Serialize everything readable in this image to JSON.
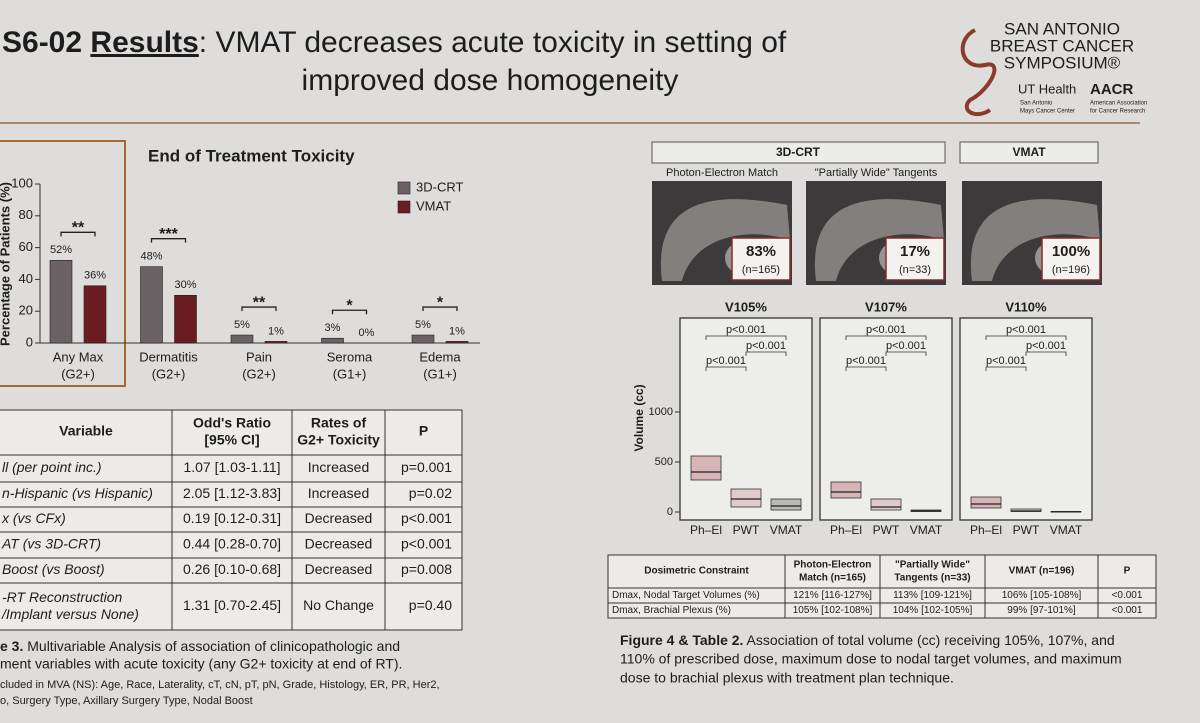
{
  "header": {
    "code": "S6-02",
    "results": "Results",
    "title_line1": ": VMAT decreases acute toxicity in setting of",
    "title_line2": "improved dose homogeneity"
  },
  "logo": {
    "line1": "SAN ANTONIO",
    "line2": "BREAST CANCER",
    "line3": "SYMPOSIUM®",
    "ut": "UT Health",
    "ut_sub1": "San Antonio",
    "ut_sub2": "Mays Cancer Center",
    "aacr": "AACR",
    "aacr_sub1": "American Association",
    "aacr_sub2": "for Cancer Research"
  },
  "chart_data": [
    {
      "type": "bar",
      "title": "End of Treatment Toxicity",
      "y_label": "Percentage of Patients (%)",
      "categories": [
        "Any Max",
        "Dermatitis",
        "Pain",
        "Seroma",
        "Edema"
      ],
      "category_grades": [
        "(G2+)",
        "(G2+)",
        "(G2+)",
        "(G1+)",
        "(G1+)"
      ],
      "significance": [
        "**",
        "***",
        "**",
        "*",
        "*"
      ],
      "series": [
        {
          "name": "3D-CRT",
          "color": "#6a6265",
          "values": [
            52,
            48,
            5,
            3,
            5
          ],
          "value_labels": [
            "52%",
            "48%",
            "5%",
            "3%",
            "5%"
          ]
        },
        {
          "name": "VMAT",
          "color": "#6b1c20",
          "values": [
            36,
            30,
            1,
            0,
            1
          ],
          "value_labels": [
            "36%",
            "30%",
            "1%",
            "0%",
            "1%"
          ]
        }
      ],
      "ylim": [
        0,
        100
      ],
      "yticks": [
        0,
        20,
        40,
        60,
        80,
        100
      ],
      "legend": "top-right"
    },
    {
      "type": "box",
      "y_label": "Volume (cc)",
      "ylim": [
        -80,
        1940
      ],
      "yticks": [
        0,
        500,
        1000
      ],
      "categories": [
        "Ph–El",
        "PWT",
        "VMAT"
      ],
      "colors": [
        "#b04a52",
        "#c78b8f",
        "#5a5a5a"
      ],
      "panels": [
        {
          "title": "V105%",
          "q1": [
            320,
            50,
            20
          ],
          "median": [
            400,
            130,
            60
          ],
          "q3": [
            560,
            230,
            130
          ],
          "annotations": [
            "p<0.001",
            "p<0.001",
            "p<0.001"
          ]
        },
        {
          "title": "V107%",
          "q1": [
            140,
            20,
            5
          ],
          "median": [
            200,
            50,
            10
          ],
          "q3": [
            300,
            130,
            20
          ],
          "annotations": [
            "p<0.001",
            "p<0.001",
            "p<0.001"
          ]
        },
        {
          "title": "V110%",
          "q1": [
            40,
            5,
            0
          ],
          "median": [
            80,
            10,
            2
          ],
          "q3": [
            150,
            30,
            5
          ],
          "annotations": [
            "p<0.001",
            "p<0.001",
            "p<0.001"
          ]
        }
      ]
    }
  ],
  "table3": {
    "columns": [
      "Variable",
      [
        "Odd's Ratio",
        "[95% CI]"
      ],
      [
        "Rates of",
        "G2+ Toxicity"
      ],
      "P"
    ],
    "rows": [
      [
        "ll (per point inc.)",
        "1.07 [1.03-1.11]",
        "Increased",
        "p=0.001"
      ],
      [
        "n-Hispanic (vs Hispanic)",
        "2.05 [1.12-3.83]",
        "Increased",
        "p=0.02"
      ],
      [
        "x (vs CFx)",
        "0.19 [0.12-0.31]",
        "Decreased",
        "p<0.001"
      ],
      [
        "AT (vs 3D-CRT)",
        "0.44 [0.28-0.70]",
        "Decreased",
        "p<0.001"
      ],
      [
        "Boost (vs Boost)",
        "0.26 [0.10-0.68]",
        "Decreased",
        "p=0.008"
      ],
      [
        [
          "-RT Reconstruction",
          "/Implant versus None)"
        ],
        "1.31 [0.70-2.45]",
        "No Change",
        "p=0.40"
      ]
    ],
    "caption_label": "e 3.",
    "caption_line1": " Multivariable Analysis of association of clinicopathologic and",
    "caption_line2": "ment variables with acute toxicity (any G2+ toxicity at end of RT).",
    "note_line1": "cluded in MVA (NS): Age, Race, Laterality, cT, cN, pT, pN, Grade, Histology, ER, PR, Her2,",
    "note_line2": "o, Surgery Type, Axillary Surgery Type, Nodal Boost"
  },
  "figure4": {
    "group_3dcrt": "3D-CRT",
    "group_vmat": "VMAT",
    "images": [
      {
        "title": "Photon-Electron Match",
        "percent": "83%",
        "n": "(n=165)"
      },
      {
        "title": "\"Partially Wide\" Tangents",
        "percent": "17%",
        "n": "(n=33)"
      },
      {
        "title": "",
        "percent": "100%",
        "n": "(n=196)"
      }
    ]
  },
  "table2": {
    "columns": [
      "Dosimetric Constraint",
      [
        "Photon-Electron",
        "Match (n=165)"
      ],
      [
        "\"Partially Wide\"",
        "Tangents (n=33)"
      ],
      "VMAT (n=196)",
      "P"
    ],
    "rows": [
      [
        "Dmax, Nodal Target Volumes (%)",
        "121% [116-127%]",
        "113% [109-121%]",
        "106% [105-108%]",
        "<0.001"
      ],
      [
        "Dmax, Brachial Plexus (%)",
        "105% [102-108%]",
        "104% [102-105%]",
        "99% [97-101%]",
        "<0.001"
      ]
    ],
    "caption_label": "Figure 4 & Table 2.",
    "caption_line1": " Association of total volume (cc) receiving 105%, 107%, and",
    "caption_line2": "110% of prescribed dose, maximum dose to nodal target volumes, and maximum",
    "caption_line3": "dose to brachial plexus with treatment plan technique."
  }
}
